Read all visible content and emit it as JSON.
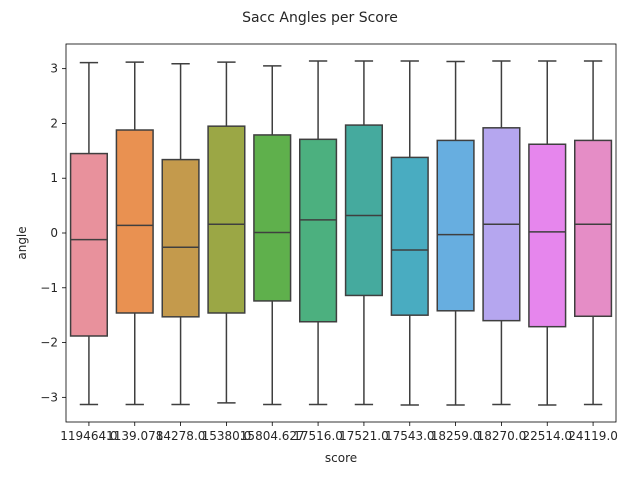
{
  "chart_data": {
    "type": "box",
    "title": "Sacc Angles per Score",
    "xlabel": "score",
    "ylabel": "angle",
    "ylim": [
      -3.45,
      3.45
    ],
    "yticks": [
      -3,
      -2,
      -1,
      0,
      1,
      2,
      3
    ],
    "ytick_labels": [
      "−3",
      "−2",
      "−1",
      "0",
      "1",
      "2",
      "3"
    ],
    "grid": false,
    "legend": "none",
    "categories": [
      "119464.0",
      "1139.078",
      "14278.0",
      "15380.0",
      "15804.627",
      "17516.0",
      "17521.0",
      "17543.0",
      "18259.0",
      "18270.0",
      "22514.0",
      "24119.0"
    ],
    "boxes": [
      {
        "min": -3.13,
        "q1": -1.88,
        "median": -0.12,
        "q3": 1.45,
        "max": 3.11,
        "color": "#e8919c"
      },
      {
        "min": -3.13,
        "q1": -1.46,
        "median": 0.14,
        "q3": 1.88,
        "max": 3.12,
        "color": "#e99151"
      },
      {
        "min": -3.13,
        "q1": -1.53,
        "median": -0.26,
        "q3": 1.34,
        "max": 3.09,
        "color": "#c49a4c"
      },
      {
        "min": -3.1,
        "q1": -1.46,
        "median": 0.16,
        "q3": 1.95,
        "max": 3.12,
        "color": "#9ba745"
      },
      {
        "min": -3.13,
        "q1": -1.24,
        "median": 0.01,
        "q3": 1.79,
        "max": 3.05,
        "color": "#5fb04c"
      },
      {
        "min": -3.13,
        "q1": -1.62,
        "median": 0.24,
        "q3": 1.71,
        "max": 3.14,
        "color": "#4cb07f"
      },
      {
        "min": -3.13,
        "q1": -1.14,
        "median": 0.32,
        "q3": 1.97,
        "max": 3.14,
        "color": "#45aa9e"
      },
      {
        "min": -3.14,
        "q1": -1.5,
        "median": -0.31,
        "q3": 1.38,
        "max": 3.14,
        "color": "#49acc1"
      },
      {
        "min": -3.14,
        "q1": -1.42,
        "median": -0.03,
        "q3": 1.69,
        "max": 3.13,
        "color": "#67aee0"
      },
      {
        "min": -3.13,
        "q1": -1.6,
        "median": 0.16,
        "q3": 1.92,
        "max": 3.14,
        "color": "#b5a6ef"
      },
      {
        "min": -3.14,
        "q1": -1.71,
        "median": 0.02,
        "q3": 1.62,
        "max": 3.14,
        "color": "#e686ed"
      },
      {
        "min": -3.13,
        "q1": -1.52,
        "median": 0.16,
        "q3": 1.69,
        "max": 3.14,
        "color": "#e58dc6"
      }
    ]
  }
}
